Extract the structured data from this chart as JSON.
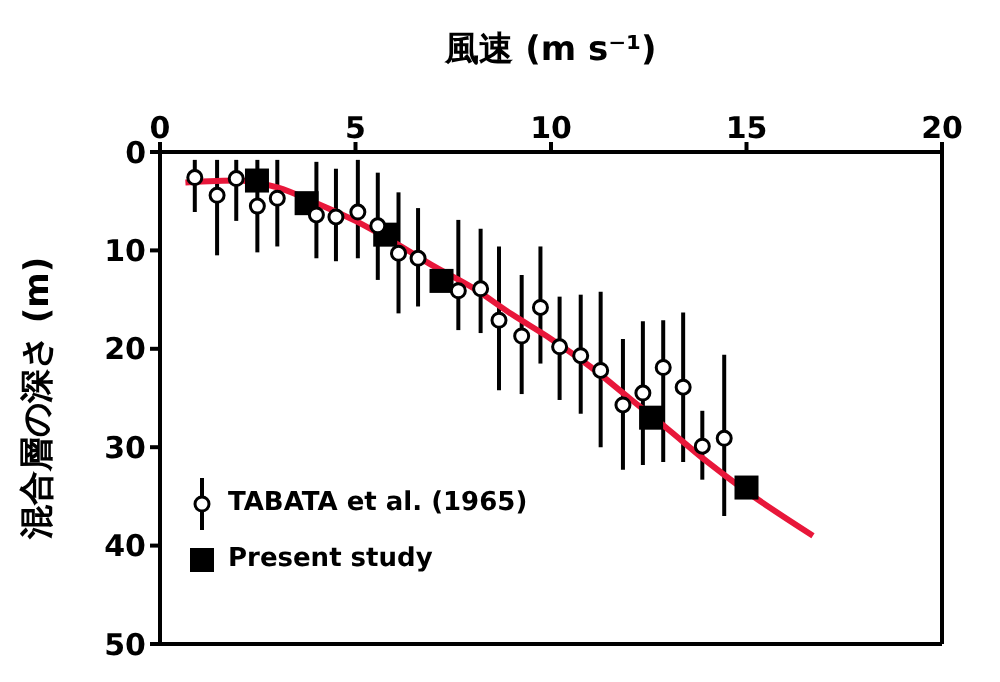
{
  "chart_data": {
    "type": "scatter",
    "xlabel": "風速 (m s⁻¹)",
    "ylabel": "混合層の深さ (m)",
    "xlim": [
      0,
      20
    ],
    "xticks": [
      0,
      5,
      10,
      15,
      20
    ],
    "ylim": [
      50,
      0
    ],
    "yticks": [
      0,
      10,
      20,
      30,
      40,
      50
    ],
    "grid": false,
    "legend": "bottom left",
    "series": [
      {
        "name": "TABATA et al. (1965)",
        "marker": "circle",
        "color": "#000000",
        "x": [
          0.89,
          1.46,
          1.95,
          2.49,
          3.0,
          4.0,
          4.5,
          5.06,
          5.57,
          6.1,
          6.6,
          7.63,
          8.2,
          8.67,
          9.25,
          9.73,
          10.22,
          10.76,
          11.27,
          11.84,
          12.35,
          12.87,
          13.38,
          13.87,
          14.43
        ],
        "values": [
          2.6,
          4.4,
          2.7,
          5.5,
          4.7,
          6.4,
          6.6,
          6.1,
          7.5,
          10.3,
          10.8,
          14.1,
          13.9,
          17.1,
          18.7,
          15.8,
          19.8,
          20.7,
          22.2,
          25.7,
          24.5,
          21.9,
          23.9,
          29.9,
          29.1
        ],
        "errors": [
          [
            0.8,
            6.1
          ],
          [
            0.8,
            10.5
          ],
          [
            0.8,
            7.0
          ],
          [
            0.8,
            10.2
          ],
          [
            0.8,
            9.6
          ],
          [
            1.0,
            10.8
          ],
          [
            1.7,
            11.1
          ],
          [
            0.8,
            10.8
          ],
          [
            2.1,
            13.0
          ],
          [
            4.1,
            16.4
          ],
          [
            5.7,
            15.7
          ],
          [
            6.9,
            18.1
          ],
          [
            7.8,
            18.4
          ],
          [
            9.6,
            24.2
          ],
          [
            12.5,
            24.6
          ],
          [
            9.6,
            21.5
          ],
          [
            14.7,
            25.2
          ],
          [
            14.5,
            26.6
          ],
          [
            14.2,
            30.0
          ],
          [
            19.0,
            32.3
          ],
          [
            17.2,
            31.8
          ],
          [
            17.1,
            31.5
          ],
          [
            16.3,
            31.5
          ],
          [
            26.3,
            33.3
          ],
          [
            20.6,
            37.0
          ]
        ]
      },
      {
        "name": "Present study",
        "marker": "square",
        "color": "#000000",
        "x": [
          2.48,
          3.75,
          5.76,
          7.2,
          12.56,
          15.0
        ],
        "values": [
          2.9,
          5.2,
          8.4,
          13.1,
          27.0,
          34.1
        ]
      },
      {
        "type": "line",
        "marker": "none",
        "color": "#e8173a",
        "x": [
          0.65,
          2,
          3,
          4,
          5,
          6,
          7,
          8,
          9,
          10,
          11,
          12,
          13,
          14,
          15,
          16.7
        ],
        "values": [
          3.1,
          2.9,
          3.6,
          5.2,
          7.0,
          9.2,
          11.6,
          13.8,
          16.5,
          19.0,
          21.8,
          25.0,
          28.2,
          31.5,
          34.5,
          39.0
        ]
      }
    ]
  }
}
